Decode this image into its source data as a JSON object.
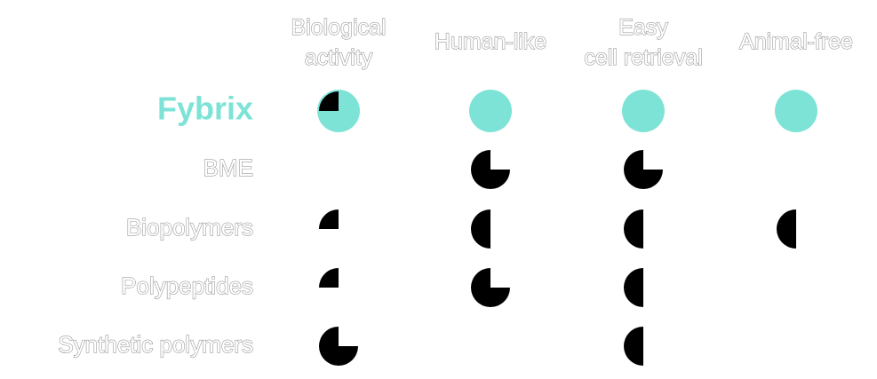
{
  "table": {
    "columns": [
      "Biological activity",
      "Human-like",
      "Easy cell retrieval",
      "Animal-free"
    ],
    "max_score": 4,
    "highlight_color": "#7de3d6",
    "score_color": "#000000",
    "rows": [
      {
        "label": "Fybrix",
        "highlight": true,
        "scores": [
          1,
          0,
          0,
          0
        ]
      },
      {
        "label": "BME",
        "highlight": false,
        "scores": [
          null,
          3,
          3,
          null
        ]
      },
      {
        "label": "Biopolymers",
        "highlight": false,
        "scores": [
          1,
          2,
          2,
          2
        ]
      },
      {
        "label": "Polypeptides",
        "highlight": false,
        "scores": [
          1,
          3,
          2,
          null
        ]
      },
      {
        "label": "Synthetic polymers",
        "highlight": false,
        "scores": [
          3,
          null,
          2,
          null
        ]
      }
    ]
  }
}
